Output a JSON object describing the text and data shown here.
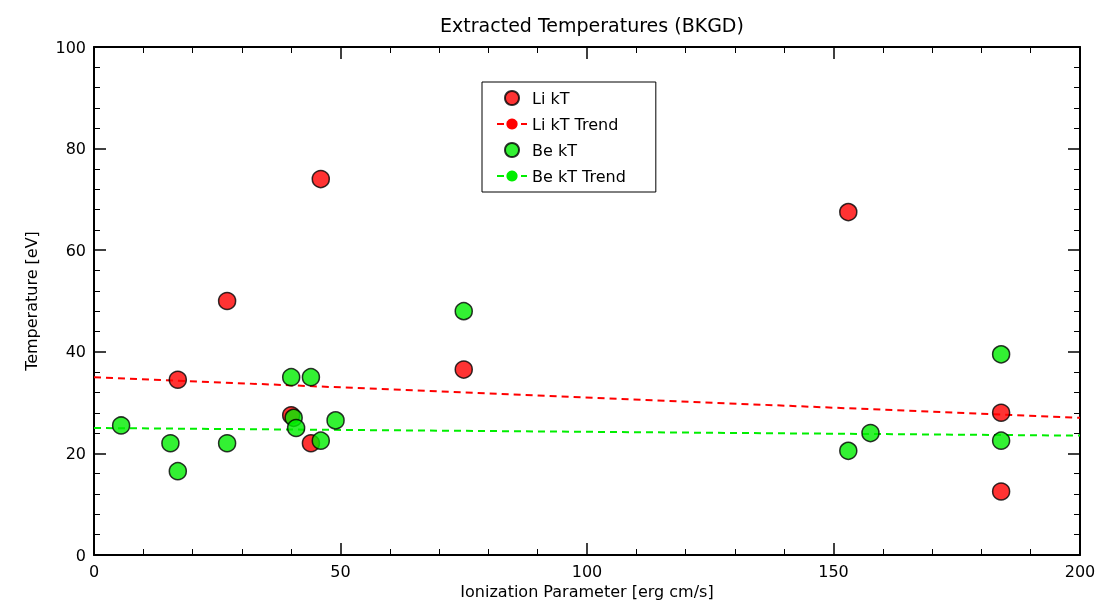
{
  "chart_data": {
    "type": "scatter",
    "title": "Extracted Temperatures (BKGD)",
    "xlabel": "Ionization Parameter [erg cm/s]",
    "ylabel": "Temperature [eV]",
    "xlim": [
      0,
      200
    ],
    "xticks": [
      0,
      50,
      100,
      150,
      200
    ],
    "ylim": [
      0,
      100
    ],
    "yticks": [
      0,
      20,
      40,
      60,
      80,
      100
    ],
    "grid": false,
    "legend": "top",
    "marker": "circle",
    "series": [
      {
        "name": "Li kT",
        "color": "#ff0000",
        "x": [
          17,
          27,
          46,
          40,
          44,
          75,
          153,
          184,
          184
        ],
        "values": [
          34.5,
          50,
          74,
          27.5,
          22,
          36.5,
          67.5,
          28,
          12.5
        ]
      },
      {
        "name": "Li kT Trend",
        "type": "line",
        "line_style": "dashed",
        "marker": "none",
        "color": "#ff0000",
        "x": [
          0,
          200
        ],
        "values": [
          35,
          27
        ]
      },
      {
        "name": "Be kT",
        "color": "#00ee00",
        "x": [
          5.5,
          15.5,
          17,
          27,
          40,
          44,
          40.5,
          41,
          46,
          49,
          75,
          153,
          157.5,
          184,
          184
        ],
        "values": [
          25.5,
          22,
          16.5,
          22,
          35,
          35,
          27,
          25,
          22.5,
          26.5,
          48,
          20.5,
          24,
          39.5,
          22.5
        ]
      },
      {
        "name": "Be kT Trend",
        "type": "line",
        "line_style": "dashed",
        "marker": "none",
        "color": "#00ee00",
        "x": [
          0,
          200
        ],
        "values": [
          25,
          23.5
        ]
      }
    ]
  }
}
